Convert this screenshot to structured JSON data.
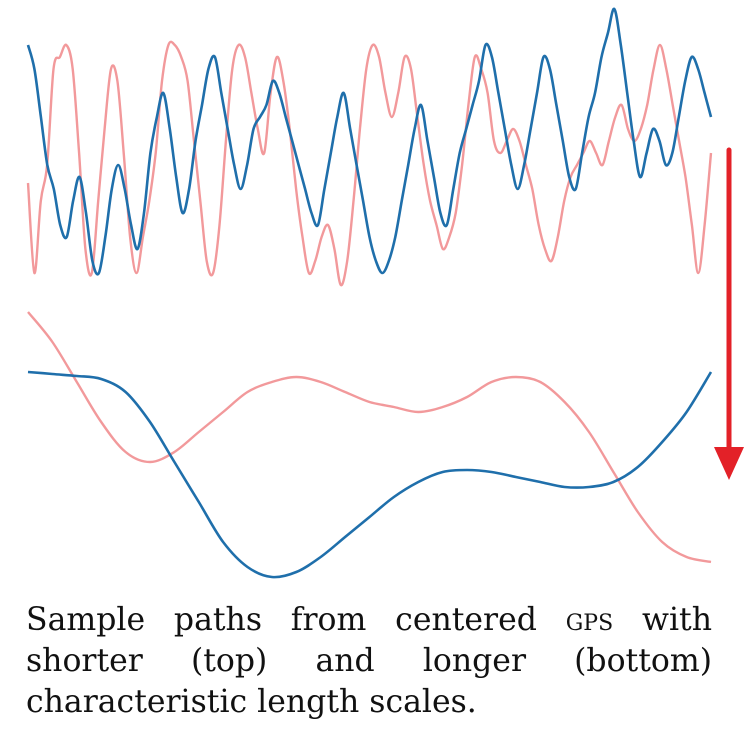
{
  "colors": {
    "blue": "#1f6fab",
    "pink": "#f2999b",
    "arrow": "#e32128",
    "background": "#ffffff"
  },
  "panels": [
    {
      "name": "short-length-scale",
      "paths": [
        {
          "color": "pink",
          "values": [
            -0.15,
            -0.9,
            -0.3,
            0.0,
            0.8,
            0.9,
            1.0,
            0.8,
            0.1,
            -0.7,
            -0.9,
            -0.3,
            0.3,
            0.8,
            0.7,
            0.1,
            -0.6,
            -0.9,
            -0.6,
            -0.3,
            0.1,
            0.7,
            1.0,
            1.0,
            0.9,
            0.7,
            0.2,
            -0.3,
            -0.8,
            -0.9,
            -0.5,
            0.2,
            0.8,
            1.0,
            0.9,
            0.6,
            0.3,
            0.1,
            0.6,
            0.9,
            0.7,
            0.3,
            -0.2,
            -0.6,
            -0.9,
            -0.8,
            -0.6,
            -0.5,
            -0.7,
            -1.0,
            -0.8,
            -0.3,
            0.3,
            0.8,
            1.0,
            0.9,
            0.6,
            0.4,
            0.6,
            0.9,
            0.8,
            0.4,
            0.0,
            -0.3,
            -0.5,
            -0.7,
            -0.6,
            -0.4,
            0.0,
            0.5,
            0.9,
            0.8,
            0.6,
            0.2,
            0.1,
            0.2,
            0.3,
            0.2,
            0.0,
            -0.2,
            -0.5,
            -0.7,
            -0.8,
            -0.6,
            -0.3,
            -0.1,
            0.0,
            0.1,
            0.2,
            0.1,
            0.0,
            0.2,
            0.4,
            0.5,
            0.3,
            0.2,
            0.3,
            0.5,
            0.8,
            1.0,
            0.8,
            0.5,
            0.2,
            -0.1,
            -0.5,
            -0.9,
            -0.5,
            0.1
          ]
        },
        {
          "color": "blue",
          "values": [
            1.0,
            0.8,
            0.4,
            0.0,
            -0.2,
            -0.5,
            -0.6,
            -0.3,
            -0.1,
            -0.4,
            -0.8,
            -0.9,
            -0.6,
            -0.2,
            0.0,
            -0.2,
            -0.5,
            -0.7,
            -0.4,
            0.1,
            0.4,
            0.6,
            0.3,
            -0.1,
            -0.4,
            -0.2,
            0.2,
            0.5,
            0.8,
            0.9,
            0.6,
            0.3,
            0.0,
            -0.2,
            0.0,
            0.3,
            0.4,
            0.5,
            0.7,
            0.6,
            0.4,
            0.2,
            0.0,
            -0.2,
            -0.4,
            -0.5,
            -0.2,
            0.1,
            0.4,
            0.6,
            0.3,
            0.0,
            -0.3,
            -0.6,
            -0.8,
            -0.9,
            -0.8,
            -0.6,
            -0.3,
            0.0,
            0.3,
            0.5,
            0.2,
            -0.1,
            -0.4,
            -0.5,
            -0.2,
            0.1,
            0.3,
            0.5,
            0.7,
            1.0,
            0.9,
            0.6,
            0.3,
            0.0,
            -0.2,
            0.0,
            0.3,
            0.6,
            0.9,
            0.8,
            0.5,
            0.2,
            -0.1,
            -0.2,
            0.1,
            0.4,
            0.6,
            0.9,
            1.1,
            1.3,
            1.0,
            0.6,
            0.2,
            -0.1,
            0.1,
            0.3,
            0.2,
            0.0,
            0.1,
            0.4,
            0.7,
            0.9,
            0.8,
            0.6,
            0.4
          ]
        }
      ]
    },
    {
      "name": "long-length-scale",
      "paths": [
        {
          "color": "pink",
          "values": [
            1.0,
            0.7,
            0.3,
            -0.1,
            -0.4,
            -0.5,
            -0.4,
            -0.2,
            0.0,
            0.2,
            0.3,
            0.35,
            0.3,
            0.2,
            0.1,
            0.05,
            0.0,
            0.05,
            0.15,
            0.3,
            0.35,
            0.3,
            0.1,
            -0.2,
            -0.6,
            -1.0,
            -1.3,
            -1.45,
            -1.5
          ]
        },
        {
          "color": "blue",
          "values": [
            0.4,
            0.38,
            0.36,
            0.33,
            0.2,
            -0.1,
            -0.5,
            -0.9,
            -1.3,
            -1.55,
            -1.65,
            -1.6,
            -1.45,
            -1.25,
            -1.05,
            -0.85,
            -0.7,
            -0.6,
            -0.58,
            -0.6,
            -0.65,
            -0.7,
            -0.75,
            -0.75,
            -0.7,
            -0.55,
            -0.3,
            0.0,
            0.4
          ]
        }
      ]
    }
  ],
  "caption": {
    "part1": "Sample paths from centered ",
    "sc": "gps",
    "part2": " with shorter (top) and longer (bottom) characteristic length scales."
  }
}
